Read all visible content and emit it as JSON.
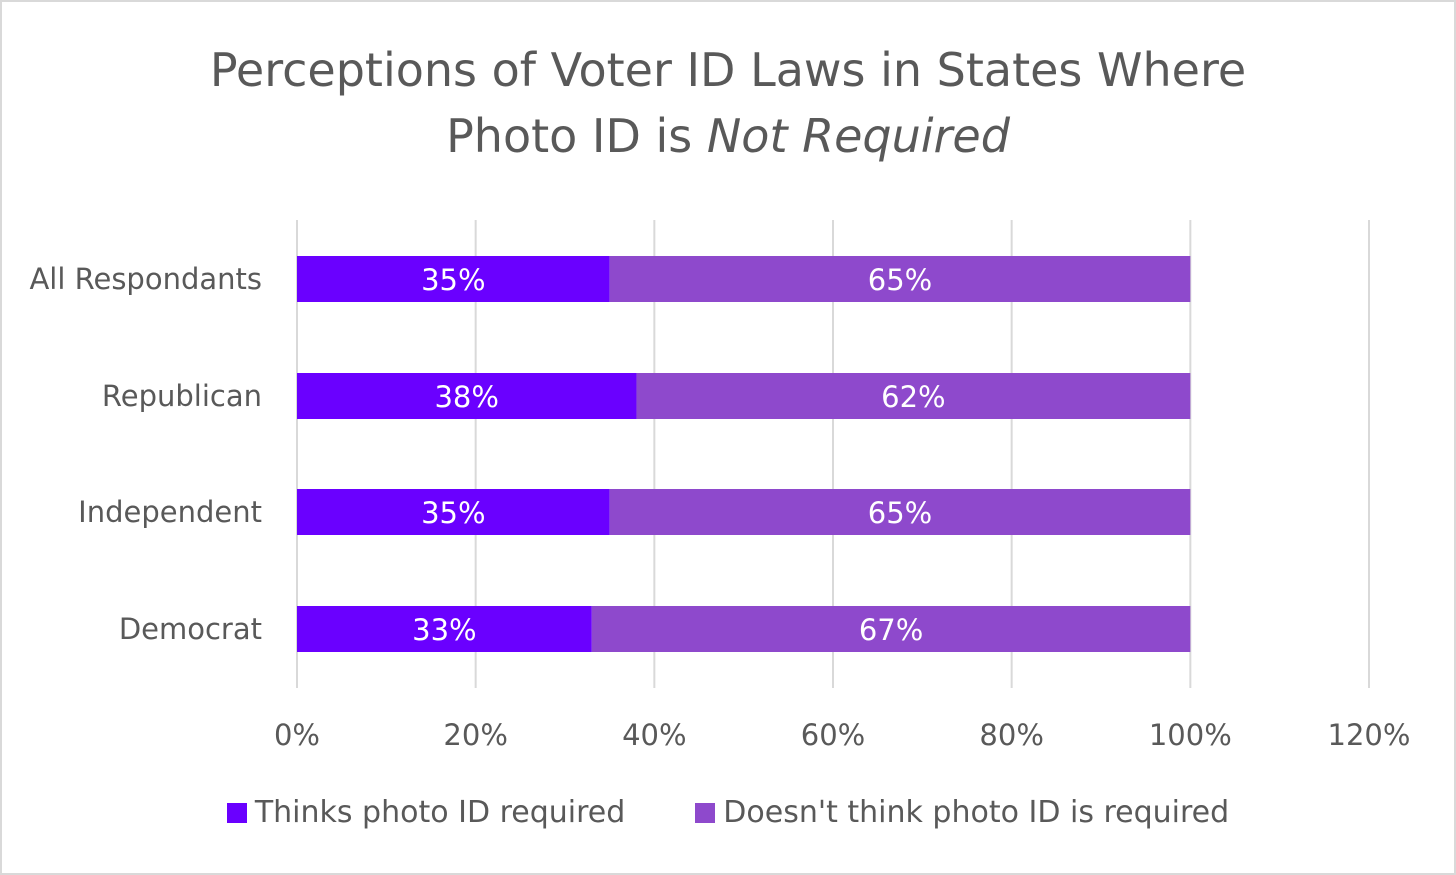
{
  "chart_data": {
    "type": "bar",
    "orientation": "horizontal",
    "stacked": true,
    "title_line1": "Perceptions of Voter ID Laws in States Where",
    "title_line2_prefix": "Photo ID is ",
    "title_line2_emphasis": "Not Required",
    "categories": [
      "All Respondants",
      "Republican",
      "Independent",
      "Democrat"
    ],
    "series": [
      {
        "name": "Thinks photo ID required",
        "color": "#6a00ff",
        "values": [
          35,
          38,
          35,
          33
        ],
        "labels": [
          "35%",
          "38%",
          "35%",
          "33%"
        ]
      },
      {
        "name": "Doesn't think photo ID is required",
        "color": "#8e49cc",
        "values": [
          65,
          62,
          65,
          67
        ],
        "labels": [
          "65%",
          "62%",
          "65%",
          "67%"
        ]
      }
    ],
    "xlim": [
      0,
      120
    ],
    "xticks": [
      0,
      20,
      40,
      60,
      80,
      100,
      120
    ],
    "xtick_labels": [
      "0%",
      "20%",
      "40%",
      "60%",
      "80%",
      "100%",
      "120%"
    ],
    "grid": true,
    "legend_position": "bottom"
  }
}
